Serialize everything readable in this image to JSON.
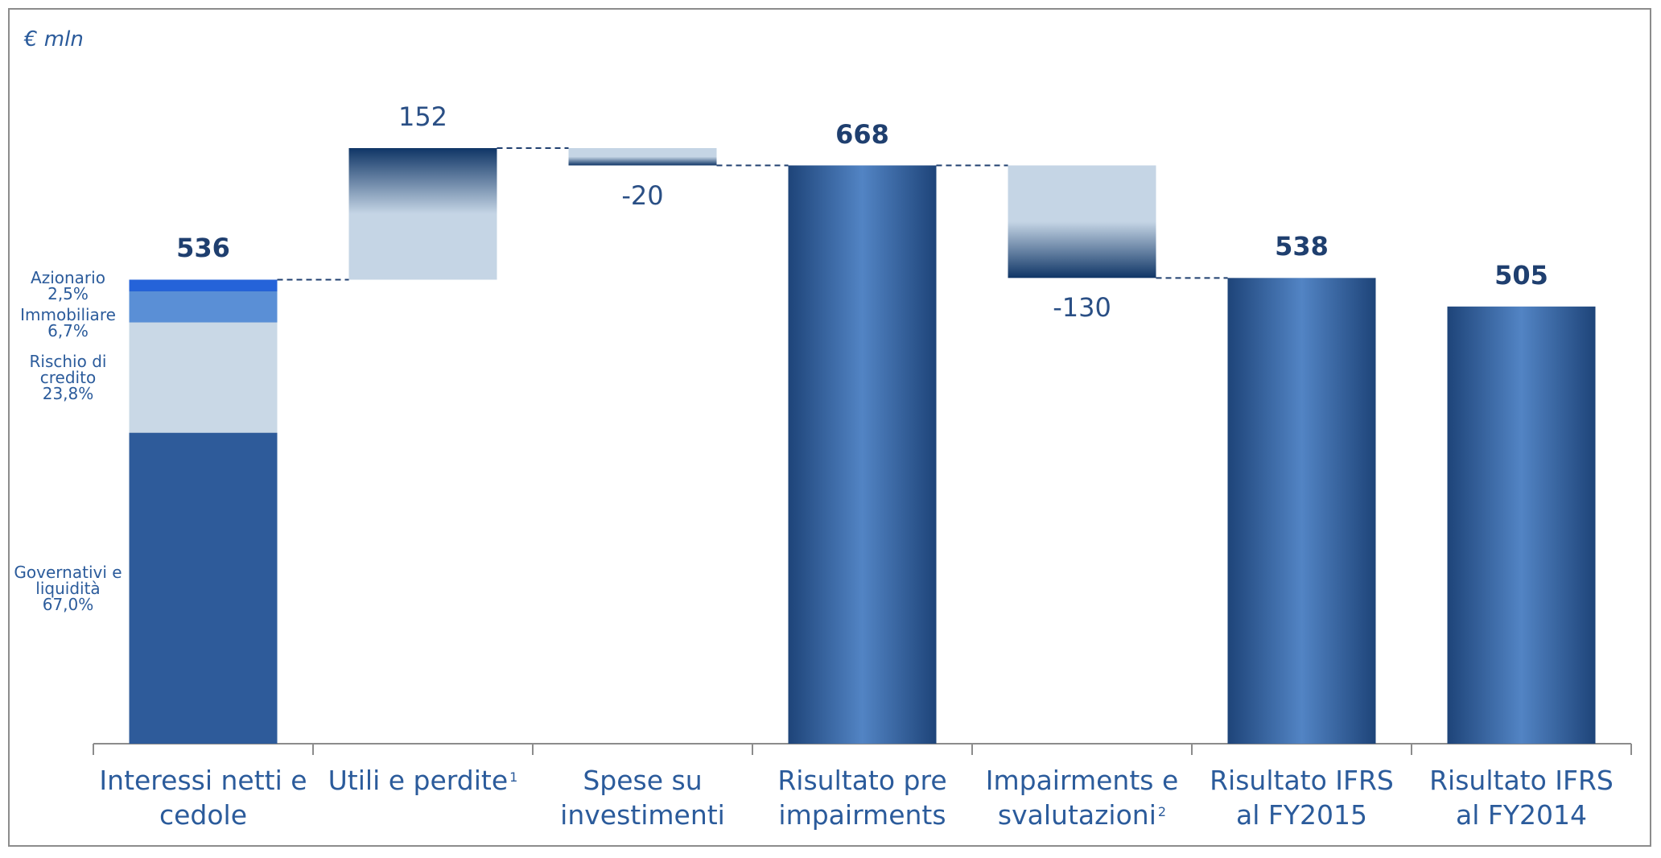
{
  "chart_data": {
    "type": "waterfall",
    "unit_label": "€ mln",
    "categories": [
      "Interessi netti e cedole",
      "Utili e perdite",
      "Spese su investimenti",
      "Risultato pre impairments",
      "Impairments e svalutazioni",
      "Risultato IFRS al FY2015",
      "Risultato IFRS al FY2014"
    ],
    "footnotes": [
      null,
      "1",
      null,
      null,
      "2",
      null,
      null
    ],
    "values": [
      536,
      152,
      -20,
      668,
      -130,
      538,
      505
    ],
    "kinds": [
      "total",
      "delta",
      "delta",
      "total",
      "delta",
      "total",
      "total"
    ],
    "color": "#2e5b9a",
    "delta_color": "#c5d5e5",
    "composition": {
      "categories": [
        "Governativi e liquidità",
        "Rischio di credito",
        "Immobiliare",
        "Azionario"
      ],
      "values": [
        67.0,
        23.8,
        6.7,
        2.5
      ],
      "value_labels": [
        "67,0%",
        "23,8%",
        "6,7%",
        "2,5%"
      ],
      "colors": [
        "#2e5b9a",
        "#c9d8e6",
        "#5a8fd6",
        "#2563d9"
      ]
    }
  }
}
